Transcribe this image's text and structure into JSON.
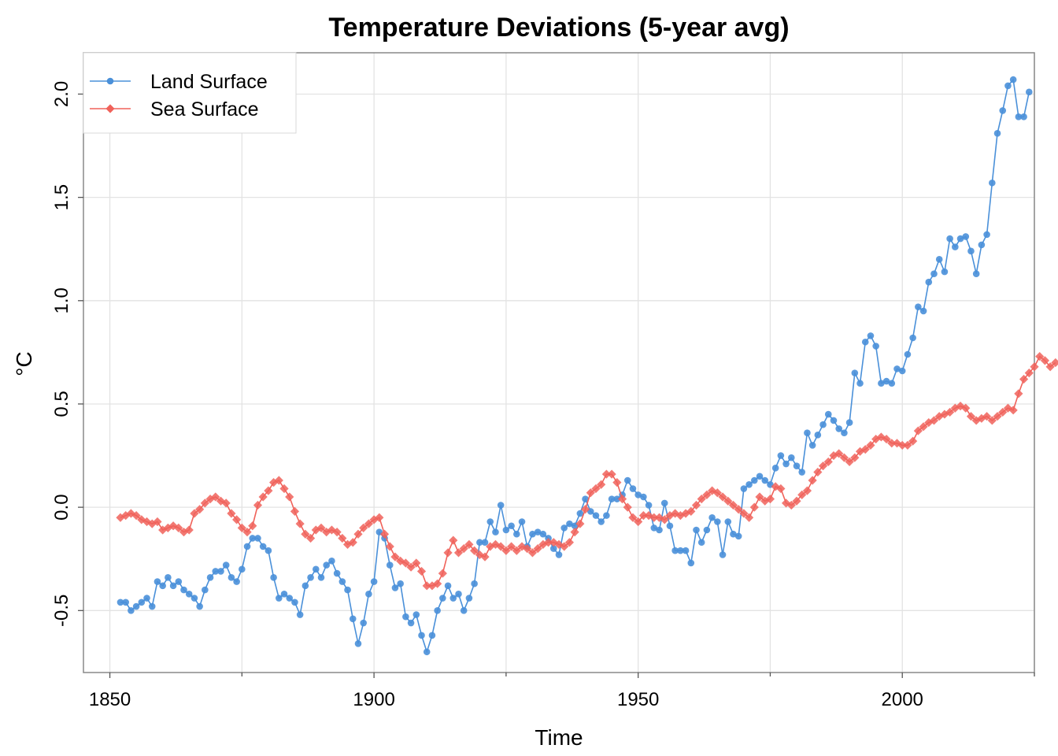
{
  "chart_data": {
    "type": "line",
    "title": "Temperature Deviations (5-year avg)",
    "xlabel": "Time",
    "ylabel": "°C",
    "xlim": [
      1845,
      2025
    ],
    "ylim": [
      -0.8,
      2.2
    ],
    "x_ticks": [
      1850,
      1900,
      1950,
      2000
    ],
    "x_minor_ticks": [
      1875,
      1925,
      1975,
      2025
    ],
    "y_ticks": [
      -0.5,
      0.0,
      0.5,
      1.0,
      1.5,
      2.0
    ],
    "y_tick_labels": [
      "-0.5",
      "0.0",
      "0.5",
      "1.0",
      "1.5",
      "2.0"
    ],
    "grid": true,
    "legend_position": "top-left",
    "x_start": 1852,
    "series": [
      {
        "name": "Land Surface",
        "color": "#4A90D9",
        "marker": "circle",
        "values": [
          -0.46,
          -0.46,
          -0.5,
          -0.48,
          -0.46,
          -0.44,
          -0.48,
          -0.36,
          -0.38,
          -0.34,
          -0.38,
          -0.36,
          -0.4,
          -0.42,
          -0.44,
          -0.48,
          -0.4,
          -0.34,
          -0.31,
          -0.31,
          -0.28,
          -0.34,
          -0.36,
          -0.3,
          -0.19,
          -0.15,
          -0.15,
          -0.19,
          -0.21,
          -0.34,
          -0.44,
          -0.42,
          -0.44,
          -0.46,
          -0.52,
          -0.38,
          -0.34,
          -0.3,
          -0.34,
          -0.28,
          -0.26,
          -0.32,
          -0.36,
          -0.4,
          -0.54,
          -0.66,
          -0.56,
          -0.42,
          -0.36,
          -0.12,
          -0.15,
          -0.28,
          -0.39,
          -0.37,
          -0.53,
          -0.56,
          -0.52,
          -0.62,
          -0.7,
          -0.62,
          -0.5,
          -0.44,
          -0.38,
          -0.44,
          -0.42,
          -0.5,
          -0.44,
          -0.37,
          -0.17,
          -0.17,
          -0.07,
          -0.12,
          0.01,
          -0.11,
          -0.09,
          -0.13,
          -0.07,
          -0.19,
          -0.13,
          -0.12,
          -0.13,
          -0.15,
          -0.2,
          -0.23,
          -0.1,
          -0.08,
          -0.09,
          -0.03,
          0.04,
          -0.02,
          -0.04,
          -0.07,
          -0.04,
          0.04,
          0.04,
          0.06,
          0.13,
          0.09,
          0.06,
          0.05,
          0.01,
          -0.1,
          -0.11,
          0.02,
          -0.09,
          -0.21,
          -0.21,
          -0.21,
          -0.27,
          -0.11,
          -0.17,
          -0.11,
          -0.05,
          -0.07,
          -0.23,
          -0.07,
          -0.13,
          -0.14,
          0.09,
          0.11,
          0.13,
          0.15,
          0.13,
          0.11,
          0.19,
          0.25,
          0.21,
          0.24,
          0.2,
          0.17,
          0.36,
          0.3,
          0.35,
          0.4,
          0.45,
          0.42,
          0.38,
          0.36,
          0.41,
          0.65,
          0.6,
          0.8,
          0.83,
          0.78,
          0.6,
          0.61,
          0.6,
          0.67,
          0.66,
          0.74,
          0.82,
          0.97,
          0.95,
          1.09,
          1.13,
          1.2,
          1.14,
          1.3,
          1.26,
          1.3,
          1.31,
          1.24,
          1.13,
          1.27,
          1.32,
          1.57,
          1.81,
          1.92,
          2.04,
          2.07,
          1.89,
          1.89,
          2.01
        ]
      },
      {
        "name": "Sea Surface",
        "color": "#F0625A",
        "marker": "diamond",
        "values": [
          -0.05,
          -0.04,
          -0.03,
          -0.04,
          -0.06,
          -0.07,
          -0.08,
          -0.07,
          -0.11,
          -0.1,
          -0.09,
          -0.1,
          -0.12,
          -0.11,
          -0.03,
          -0.01,
          0.02,
          0.04,
          0.05,
          0.03,
          0.02,
          -0.03,
          -0.06,
          -0.1,
          -0.12,
          -0.09,
          0.01,
          0.05,
          0.08,
          0.12,
          0.13,
          0.09,
          0.05,
          -0.02,
          -0.08,
          -0.13,
          -0.15,
          -0.11,
          -0.1,
          -0.12,
          -0.11,
          -0.12,
          -0.15,
          -0.18,
          -0.17,
          -0.13,
          -0.1,
          -0.08,
          -0.06,
          -0.05,
          -0.13,
          -0.19,
          -0.24,
          -0.26,
          -0.27,
          -0.29,
          -0.27,
          -0.31,
          -0.38,
          -0.38,
          -0.37,
          -0.32,
          -0.22,
          -0.16,
          -0.22,
          -0.2,
          -0.18,
          -0.21,
          -0.23,
          -0.24,
          -0.19,
          -0.18,
          -0.19,
          -0.21,
          -0.19,
          -0.21,
          -0.19,
          -0.2,
          -0.22,
          -0.2,
          -0.18,
          -0.17,
          -0.17,
          -0.18,
          -0.19,
          -0.17,
          -0.12,
          -0.08,
          -0.01,
          0.07,
          0.09,
          0.11,
          0.16,
          0.16,
          0.12,
          0.04,
          0.0,
          -0.05,
          -0.07,
          -0.04,
          -0.04,
          -0.05,
          -0.05,
          -0.06,
          -0.04,
          -0.03,
          -0.04,
          -0.03,
          -0.02,
          0.01,
          0.04,
          0.06,
          0.08,
          0.07,
          0.05,
          0.03,
          0.01,
          -0.01,
          -0.03,
          -0.05,
          0.0,
          0.05,
          0.03,
          0.04,
          0.1,
          0.09,
          0.02,
          0.01,
          0.03,
          0.06,
          0.08,
          0.13,
          0.17,
          0.2,
          0.22,
          0.25,
          0.26,
          0.24,
          0.22,
          0.24,
          0.27,
          0.28,
          0.3,
          0.33,
          0.34,
          0.33,
          0.31,
          0.31,
          0.3,
          0.3,
          0.32,
          0.37,
          0.39,
          0.41,
          0.42,
          0.44,
          0.45,
          0.46,
          0.48,
          0.49,
          0.48,
          0.44,
          0.42,
          0.43,
          0.44,
          0.42,
          0.44,
          0.46,
          0.48,
          0.47,
          0.55,
          0.62,
          0.65,
          0.68,
          0.73,
          0.71,
          0.68,
          0.7
        ]
      }
    ]
  }
}
